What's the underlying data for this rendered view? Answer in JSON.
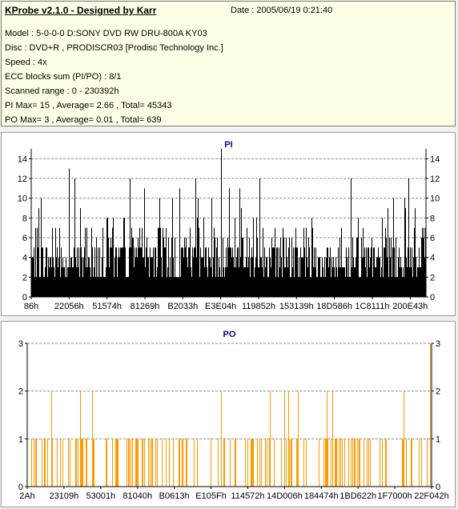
{
  "info": {
    "title": "KProbe v2.1.0 - Designed by Karr",
    "date": "Date : 2005/06/19 0:21:40",
    "lines": [
      "Model : 5-0-0-0 D:SONY    DVD RW DRU-800A  KY03",
      "Disc : DVD+R , PRODISCR03 [Prodisc Technology Inc.]",
      "Speed : 4x",
      "ECC blocks sum (PI/PO) : 8/1",
      "Scanned range : 0 - 230392h",
      "PI Max= 15 , Average= 2.66 , Total= 45343",
      "PO Max= 3 , Average= 0.01 , Total= 639"
    ]
  },
  "chart_data": [
    {
      "type": "bar",
      "title": "PI",
      "ylim": [
        0,
        15
      ],
      "yticks": [
        0,
        2,
        4,
        6,
        8,
        10,
        12,
        14
      ],
      "xticks": [
        "86h",
        "22056h",
        "51574h",
        "81269h",
        "B2033h",
        "E3E04h",
        "119852h",
        "153139h",
        "18D586h",
        "1C8111h",
        "200E43h"
      ],
      "grid": true,
      "color": "#000000",
      "max": 15,
      "average": 2.66,
      "total": 45343
    },
    {
      "type": "bar",
      "title": "PO",
      "ylim": [
        0,
        3
      ],
      "yticks": [
        0,
        1,
        2,
        3
      ],
      "xticks": [
        "2Ah",
        "23109h",
        "53001h",
        "81040h",
        "B0613h",
        "E105Fh",
        "114572h",
        "14D006h",
        "184474h",
        "1BD622h",
        "1F7000h",
        "22F042h"
      ],
      "grid": true,
      "color": "#ff9900",
      "max": 3,
      "average": 0.01,
      "total": 639
    }
  ]
}
